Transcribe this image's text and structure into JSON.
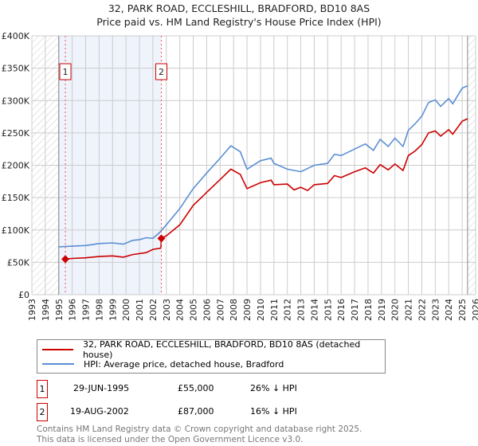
{
  "chart_data": {
    "type": "line",
    "title": "32, PARK ROAD, ECCLESHILL, BRADFORD, BD10 8AS",
    "subtitle": "Price paid vs. HM Land Registry's House Price Index (HPI)",
    "xlim": [
      1993,
      2026
    ],
    "ylim": [
      0,
      400000
    ],
    "x_ticks": [
      "1993",
      "1994",
      "1995",
      "1996",
      "1997",
      "1998",
      "1999",
      "2000",
      "2001",
      "2002",
      "2003",
      "2004",
      "2005",
      "2006",
      "2007",
      "2008",
      "2009",
      "2010",
      "2011",
      "2012",
      "2013",
      "2014",
      "2015",
      "2016",
      "2017",
      "2018",
      "2019",
      "2020",
      "2021",
      "2022",
      "2023",
      "2024",
      "2025",
      "2026"
    ],
    "y_ticks": [
      {
        "v": 0,
        "label": "£0"
      },
      {
        "v": 50000,
        "label": "£50K"
      },
      {
        "v": 100000,
        "label": "£100K"
      },
      {
        "v": 150000,
        "label": "£150K"
      },
      {
        "v": 200000,
        "label": "£200K"
      },
      {
        "v": 250000,
        "label": "£250K"
      },
      {
        "v": 300000,
        "label": "£300K"
      },
      {
        "v": 350000,
        "label": "£350K"
      },
      {
        "v": 400000,
        "label": "£400K"
      }
    ],
    "grid": true,
    "hatched_before": 1995,
    "hatched_after": 2025.4,
    "shaded_range": [
      1995,
      2002.63
    ],
    "series": [
      {
        "name": "32, PARK ROAD, ECCLESHILL, BRADFORD, BD10 8AS (detached house)",
        "color": "#cc0000",
        "x": [
          1995.49,
          1996,
          1997,
          1998,
          1999,
          1999.8,
          2000.5,
          2001.5,
          2002,
          2002.6,
          2002.63,
          2003,
          2004,
          2005,
          2006,
          2007,
          2007.8,
          2008.5,
          2009,
          2010,
          2010.8,
          2011,
          2012,
          2012.5,
          2013,
          2013.5,
          2014,
          2015,
          2015.5,
          2016,
          2017,
          2017.8,
          2018.4,
          2018.9,
          2019.5,
          2020,
          2020.6,
          2021,
          2021.5,
          2022,
          2022.5,
          2023,
          2023.4,
          2024,
          2024.3,
          2025,
          2025.4
        ],
        "y": [
          55000,
          56000,
          57000,
          59000,
          60000,
          58000,
          62000,
          65000,
          70000,
          72000,
          87000,
          91000,
          108000,
          138000,
          158000,
          178000,
          194000,
          186000,
          164000,
          173000,
          177000,
          170000,
          171000,
          162000,
          166000,
          161000,
          170000,
          172000,
          184000,
          181000,
          190000,
          196000,
          188000,
          201000,
          193000,
          202000,
          192000,
          215000,
          222000,
          232000,
          250000,
          253000,
          245000,
          255000,
          248000,
          268000,
          272000
        ]
      },
      {
        "name": "HPI: Average price, detached house, Bradford",
        "color": "#5b8fd4",
        "x": [
          1995,
          1996,
          1997,
          1998,
          1999,
          1999.8,
          2000.5,
          2001,
          2001.5,
          2002,
          2002.5,
          2003,
          2004,
          2005,
          2006,
          2007,
          2007.8,
          2008.5,
          2009,
          2010,
          2010.8,
          2011,
          2012,
          2013,
          2014,
          2015,
          2015.5,
          2016,
          2017,
          2017.8,
          2018.4,
          2018.9,
          2019.5,
          2020,
          2020.6,
          2021,
          2021.5,
          2022,
          2022.5,
          2023,
          2023.4,
          2024,
          2024.3,
          2025,
          2025.4
        ],
        "y": [
          74000,
          75000,
          76000,
          79000,
          80000,
          78000,
          84000,
          85000,
          88000,
          87000,
          96000,
          108000,
          133000,
          164000,
          188000,
          211000,
          230000,
          221000,
          194000,
          207000,
          211000,
          203000,
          194000,
          190000,
          200000,
          203000,
          217000,
          215000,
          225000,
          233000,
          223000,
          240000,
          229000,
          242000,
          229000,
          254000,
          264000,
          276000,
          297000,
          301000,
          291000,
          303000,
          295000,
          319000,
          323000
        ]
      }
    ],
    "sales": [
      {
        "label": "1",
        "x": 1995.49,
        "y": 55000,
        "date": "29-JUN-1995",
        "price": "£55,000",
        "hpi": "26% ↓ HPI"
      },
      {
        "label": "2",
        "x": 2002.63,
        "y": 87000,
        "date": "19-AUG-2002",
        "price": "£87,000",
        "hpi": "16% ↓ HPI"
      }
    ]
  },
  "footer": {
    "line1": "Contains HM Land Registry data © Crown copyright and database right 2025.",
    "line2": "This data is licensed under the Open Government Licence v3.0."
  }
}
